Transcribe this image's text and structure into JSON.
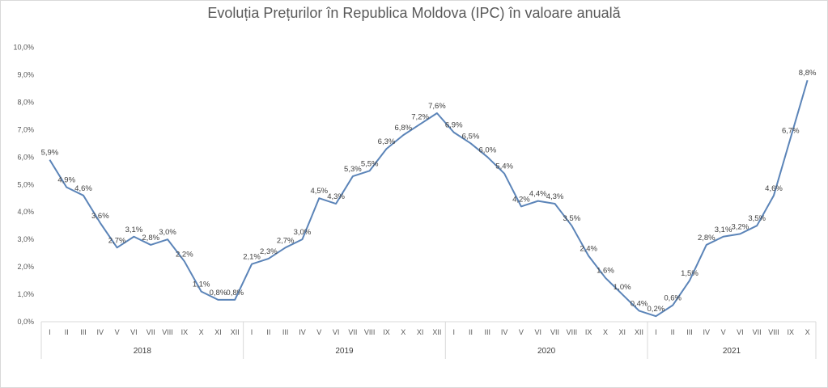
{
  "chart_data": {
    "type": "line",
    "title": "Evoluția Prețurilor în Republica Moldova (IPC) în valoare anuală",
    "xlabel": "",
    "ylabel": "",
    "ylim": [
      0,
      10
    ],
    "y_ticks": [
      "0,0%",
      "1,0%",
      "2,0%",
      "3,0%",
      "4,0%",
      "5,0%",
      "6,0%",
      "7,0%",
      "8,0%",
      "9,0%",
      "10,0%"
    ],
    "grid": false,
    "line_color": "#5b84b8",
    "groups": [
      {
        "year": "2018",
        "months": [
          "I",
          "II",
          "III",
          "IV",
          "V",
          "VI",
          "VII",
          "VIII",
          "IX",
          "X",
          "XI",
          "XII"
        ],
        "values": [
          5.9,
          4.9,
          4.6,
          3.6,
          2.7,
          3.1,
          2.8,
          3.0,
          2.2,
          1.1,
          0.8,
          0.8
        ],
        "labels": [
          "5,9%",
          "4,9%",
          "4,6%",
          "3,6%",
          "2,7%",
          "3,1%",
          "2,8%",
          "3,0%",
          "2,2%",
          "1,1%",
          "0,8%",
          "0,8%"
        ]
      },
      {
        "year": "2019",
        "months": [
          "I",
          "II",
          "III",
          "IV",
          "V",
          "VI",
          "VII",
          "VIII",
          "IX",
          "X",
          "XI",
          "XII"
        ],
        "values": [
          2.1,
          2.3,
          2.7,
          3.0,
          4.5,
          4.3,
          5.3,
          5.5,
          6.3,
          6.8,
          7.2,
          7.6
        ],
        "labels": [
          "2,1%",
          "2,3%",
          "2,7%",
          "3,0%",
          "4,5%",
          "4,3%",
          "5,3%",
          "5,5%",
          "6,3%",
          "6,8%",
          "7,2%",
          "7,6%"
        ]
      },
      {
        "year": "2020",
        "months": [
          "I",
          "II",
          "III",
          "IV",
          "V",
          "VI",
          "VII",
          "VIII",
          "IX",
          "X",
          "XI",
          "XII"
        ],
        "values": [
          6.9,
          6.5,
          6.0,
          5.4,
          4.2,
          4.4,
          4.3,
          3.5,
          2.4,
          1.6,
          1.0,
          0.4
        ],
        "labels": [
          "6,9%",
          "6,5%",
          "6,0%",
          "5,4%",
          "4,2%",
          "4,4%",
          "4,3%",
          "3,5%",
          "2,4%",
          "1,6%",
          "1,0%",
          "0,4%"
        ]
      },
      {
        "year": "2021",
        "months": [
          "I",
          "II",
          "III",
          "IV",
          "V",
          "VI",
          "VII",
          "VIII",
          "IX",
          "X"
        ],
        "values": [
          0.2,
          0.6,
          1.5,
          2.8,
          3.1,
          3.2,
          3.5,
          4.6,
          6.7,
          8.8
        ],
        "labels": [
          "0,2%",
          "0,6%",
          "1,5%",
          "2,8%",
          "3,1%",
          "3,2%",
          "3,5%",
          "4,6%",
          "6,7%",
          "8,8%"
        ]
      }
    ]
  }
}
